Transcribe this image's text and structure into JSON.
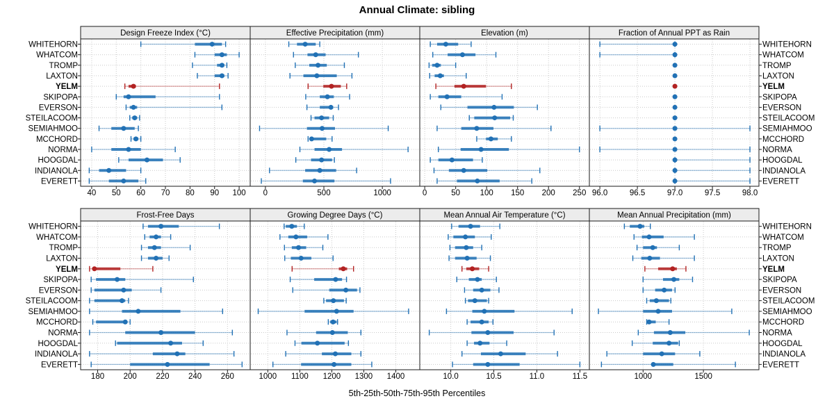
{
  "title": "Annual Climate: sibling",
  "caption": "5th-25th-50th-75th-95th Percentiles",
  "colors": {
    "series_normal": "#2171b5",
    "series_highlight": "#b22222",
    "strip_background": "#ececec",
    "panel_border": "#1a1a1a",
    "gridline": "#c9c9c9",
    "text": "#000000"
  },
  "stations": [
    "WHITEHORN",
    "WHATCOM",
    "TROMP",
    "LAXTON",
    "YELM",
    "SKIPOPA",
    "EVERSON",
    "STEILACOOM",
    "SEMIAHMOO",
    "MCCHORD",
    "NORMA",
    "HOOGDAL",
    "INDIANOLA",
    "EVERETT"
  ],
  "highlight_station": "YELM",
  "chart_data": {
    "type": "dot-whisker percentile plot (lattice 2x4 grid)",
    "percentile_labels": [
      "5th",
      "25th",
      "50th",
      "75th",
      "95th"
    ],
    "grid": [
      2,
      4
    ],
    "panels": [
      {
        "title": "Design Freeze Index (°C)",
        "grid_row": 0,
        "grid_col": 0,
        "ticks": [
          40,
          50,
          60,
          70,
          80,
          90,
          100
        ],
        "tick_labels": [
          "40",
          "50",
          "60",
          "70",
          "80",
          "90",
          "100"
        ],
        "range": [
          35.5,
          104.5
        ],
        "values": {
          "WHITEHORN": [
            60,
            82,
            89,
            93,
            94.5
          ],
          "WHATCOM": [
            82,
            90,
            93,
            95,
            100
          ],
          "TROMP": [
            81,
            91,
            93,
            94,
            95
          ],
          "LAXTON": [
            83,
            90,
            93,
            94,
            95.5
          ],
          "YELM": [
            53.5,
            55,
            57,
            58,
            92
          ],
          "SKIPOPA": [
            50,
            53,
            55,
            66,
            92
          ],
          "EVERSON": [
            54,
            55.5,
            57,
            58.5,
            93
          ],
          "STEILACOOM": [
            55.5,
            56.5,
            57.5,
            58.5,
            59.5
          ],
          "SEMIAHMOO": [
            43,
            48,
            53,
            57.5,
            59
          ],
          "MCCHORD": [
            56,
            57,
            58,
            59,
            60
          ],
          "NORMA": [
            40,
            48,
            55,
            60,
            74
          ],
          "HOOGDAL": [
            51,
            55,
            62.5,
            69,
            76
          ],
          "INDIANOLA": [
            39,
            43,
            47,
            54,
            60
          ],
          "EVERETT": [
            39,
            47,
            53,
            59,
            62
          ]
        }
      },
      {
        "title": "Effective Precipitation (mm)",
        "grid_row": 0,
        "grid_col": 1,
        "ticks": [
          0,
          500,
          1000
        ],
        "tick_labels": [
          "0",
          "500",
          "1000"
        ],
        "range": [
          -130,
          1320
        ],
        "values": {
          "WHITEHORN": [
            200,
            270,
            340,
            430,
            465
          ],
          "WHATCOM": [
            240,
            360,
            430,
            515,
            795
          ],
          "TROMP": [
            255,
            375,
            450,
            525,
            675
          ],
          "LAXTON": [
            210,
            325,
            440,
            610,
            740
          ],
          "YELM": [
            365,
            495,
            565,
            645,
            695
          ],
          "SKIPOPA": [
            345,
            465,
            530,
            585,
            720
          ],
          "EVERSON": [
            355,
            465,
            560,
            580,
            625
          ],
          "STEILACOOM": [
            390,
            420,
            480,
            545,
            580
          ],
          "SEMIAHMOO": [
            -50,
            355,
            485,
            595,
            1050
          ],
          "MCCHORD": [
            365,
            380,
            395,
            520,
            570
          ],
          "NORMA": [
            295,
            420,
            545,
            655,
            1220
          ],
          "HOOGDAL": [
            260,
            390,
            480,
            570,
            590
          ],
          "INDIANOLA": [
            35,
            340,
            465,
            605,
            780
          ],
          "EVERETT": [
            -35,
            320,
            420,
            590,
            1070
          ]
        }
      },
      {
        "title": "Elevation (m)",
        "grid_row": 0,
        "grid_col": 2,
        "ticks": [
          0,
          50,
          100,
          150,
          200,
          250
        ],
        "tick_labels": [
          "0",
          "50",
          "100",
          "150",
          "200",
          "250"
        ],
        "range": [
          -8,
          266
        ],
        "values": {
          "WHITEHORN": [
            9,
            20,
            34,
            54,
            75
          ],
          "WHATCOM": [
            13,
            37,
            61,
            82,
            115
          ],
          "TROMP": [
            7,
            12,
            20,
            26,
            50
          ],
          "LAXTON": [
            8,
            16,
            25,
            31,
            67
          ],
          "YELM": [
            18,
            48,
            63,
            99,
            140
          ],
          "SKIPOPA": [
            9,
            22,
            36,
            59,
            125
          ],
          "EVERSON": [
            26,
            69,
            112,
            144,
            182
          ],
          "STEILACOOM": [
            72,
            80,
            113,
            138,
            143
          ],
          "SEMIAHMOO": [
            20,
            59,
            84,
            111,
            204
          ],
          "MCCHORD": [
            84,
            99,
            107,
            118,
            140
          ],
          "NORMA": [
            22,
            58,
            91,
            136,
            250
          ],
          "HOOGDAL": [
            9,
            22,
            44,
            78,
            93
          ],
          "INDIANOLA": [
            15,
            39,
            63,
            101,
            186
          ],
          "EVERETT": [
            20,
            52,
            85,
            121,
            173
          ]
        }
      },
      {
        "title": "Fraction of Annual PPT as Rain",
        "grid_row": 0,
        "grid_col": 3,
        "ticks": [
          96.0,
          96.5,
          97.0,
          97.5,
          98.0
        ],
        "tick_labels": [
          "96.0",
          "96.5",
          "97.0",
          "97.5",
          "98.0"
        ],
        "range": [
          95.86,
          98.12
        ],
        "values": {
          "WHITEHORN": [
            96.0,
            97.0,
            97.0,
            97.0,
            97.0
          ],
          "WHATCOM": [
            96.0,
            97.0,
            97.0,
            97.0,
            97.0
          ],
          "TROMP": [
            97.0,
            97.0,
            97.0,
            97.0,
            97.0
          ],
          "LAXTON": [
            97.0,
            97.0,
            97.0,
            97.0,
            97.0
          ],
          "YELM": [
            97.0,
            97.0,
            97.0,
            97.0,
            97.0
          ],
          "SKIPOPA": [
            97.0,
            97.0,
            97.0,
            97.0,
            97.0
          ],
          "EVERSON": [
            97.0,
            97.0,
            97.0,
            97.0,
            97.0
          ],
          "STEILACOOM": [
            97.0,
            97.0,
            97.0,
            97.0,
            97.0
          ],
          "SEMIAHMOO": [
            96.0,
            97.0,
            97.0,
            97.0,
            98.0
          ],
          "MCCHORD": [
            97.0,
            97.0,
            97.0,
            97.0,
            97.0
          ],
          "NORMA": [
            96.0,
            97.0,
            97.0,
            97.0,
            98.0
          ],
          "HOOGDAL": [
            97.0,
            97.0,
            97.0,
            97.0,
            98.0
          ],
          "INDIANOLA": [
            97.0,
            97.0,
            97.0,
            97.0,
            98.0
          ],
          "EVERETT": [
            97.0,
            97.0,
            97.0,
            97.0,
            98.0
          ]
        }
      },
      {
        "title": "Frost-Free Days",
        "grid_row": 1,
        "grid_col": 0,
        "ticks": [
          180,
          200,
          220,
          240,
          260
        ],
        "tick_labels": [
          "180",
          "200",
          "220",
          "240",
          "260"
        ],
        "range": [
          169.5,
          274
        ],
        "values": {
          "WHITEHORN": [
            208,
            211,
            219,
            230,
            255
          ],
          "WHATCOM": [
            209,
            212,
            216,
            219,
            225
          ],
          "TROMP": [
            207,
            211,
            215,
            219,
            237
          ],
          "LAXTON": [
            207,
            211,
            216,
            220,
            224
          ],
          "YELM": [
            175,
            177,
            178,
            194,
            214
          ],
          "SKIPOPA": [
            176,
            179,
            192,
            197,
            239
          ],
          "EVERSON": [
            176,
            178,
            196,
            201,
            219
          ],
          "STEILACOOM": [
            175,
            178,
            195,
            197,
            199
          ],
          "SEMIAHMOO": [
            175,
            195,
            205,
            231,
            257
          ],
          "MCCHORD": [
            177,
            179,
            197,
            198,
            200
          ],
          "NORMA": [
            175,
            197,
            219,
            240,
            263
          ],
          "HOOGDAL": [
            191,
            192,
            225,
            232,
            245
          ],
          "INDIANOLA": [
            175,
            214,
            229,
            234,
            264
          ],
          "EVERETT": [
            176,
            200,
            223,
            249,
            269
          ]
        }
      },
      {
        "title": "Growing Degree Days (°C)",
        "grid_row": 1,
        "grid_col": 1,
        "ticks": [
          1000,
          1100,
          1200,
          1300,
          1400
        ],
        "tick_labels": [
          "1000",
          "1100",
          "1200",
          "1300",
          "1400"
        ],
        "range": [
          945,
          1475
        ],
        "values": {
          "WHITEHORN": [
            1051,
            1056,
            1075,
            1091,
            1114
          ],
          "WHATCOM": [
            1038,
            1064,
            1088,
            1123,
            1188
          ],
          "TROMP": [
            1052,
            1075,
            1096,
            1120,
            1172
          ],
          "LAXTON": [
            1053,
            1072,
            1104,
            1136,
            1204
          ],
          "YELM": [
            1076,
            1222,
            1236,
            1248,
            1268
          ],
          "SKIPOPA": [
            1070,
            1145,
            1212,
            1232,
            1246
          ],
          "EVERSON": [
            1078,
            1192,
            1244,
            1279,
            1288
          ],
          "STEILACOOM": [
            1175,
            1182,
            1205,
            1238,
            1245
          ],
          "SEMIAHMOO": [
            970,
            1115,
            1215,
            1268,
            1440
          ],
          "MCCHORD": [
            1189,
            1195,
            1204,
            1215,
            1218
          ],
          "NORMA": [
            1060,
            1151,
            1202,
            1250,
            1291
          ],
          "HOOGDAL": [
            1085,
            1105,
            1155,
            1240,
            1252
          ],
          "INDIANOLA": [
            1056,
            1169,
            1211,
            1261,
            1291
          ],
          "EVERETT": [
            1016,
            1104,
            1207,
            1261,
            1325
          ]
        }
      },
      {
        "title": "Mean Annual Air Temperature (°C)",
        "grid_row": 1,
        "grid_col": 2,
        "ticks": [
          10.0,
          10.5,
          11.0,
          11.5
        ],
        "tick_labels": [
          "10.0",
          "10.5",
          "11.0",
          "11.5"
        ],
        "range": [
          9.64,
          11.61
        ],
        "values": {
          "WHITEHORN": [
            10.01,
            10.09,
            10.23,
            10.34,
            10.57
          ],
          "WHATCOM": [
            9.97,
            10.03,
            10.17,
            10.28,
            10.47
          ],
          "TROMP": [
            9.99,
            10.05,
            10.18,
            10.26,
            10.36
          ],
          "LAXTON": [
            9.98,
            10.05,
            10.19,
            10.3,
            10.46
          ],
          "YELM": [
            10.13,
            10.18,
            10.25,
            10.33,
            10.44
          ],
          "SKIPOPA": [
            10.07,
            10.21,
            10.31,
            10.36,
            10.53
          ],
          "EVERSON": [
            10.16,
            10.26,
            10.36,
            10.46,
            10.56
          ],
          "STEILACOOM": [
            10.17,
            10.2,
            10.28,
            10.42,
            10.44
          ],
          "SEMIAHMOO": [
            9.95,
            10.25,
            10.39,
            10.74,
            11.41
          ],
          "MCCHORD": [
            10.19,
            10.23,
            10.36,
            10.44,
            10.49
          ],
          "NORMA": [
            9.75,
            10.24,
            10.43,
            10.73,
            11.2
          ],
          "HOOGDAL": [
            10.19,
            10.27,
            10.34,
            10.45,
            10.65
          ],
          "INDIANOLA": [
            10.13,
            10.35,
            10.58,
            10.87,
            11.24
          ],
          "EVERETT": [
            10.02,
            10.26,
            10.43,
            10.8,
            11.5
          ]
        }
      },
      {
        "title": "Mean Annual Precipitation (mm)",
        "grid_row": 1,
        "grid_col": 3,
        "ticks": [
          1000,
          1500
        ],
        "tick_labels": [
          "1000",
          "1500"
        ],
        "range": [
          555,
          1960
        ],
        "values": {
          "WHITEHORN": [
            845,
            890,
            975,
            1010,
            1060
          ],
          "WHATCOM": [
            925,
            990,
            1050,
            1170,
            1425
          ],
          "TROMP": [
            950,
            1000,
            1080,
            1115,
            1300
          ],
          "LAXTON": [
            915,
            985,
            1055,
            1140,
            1425
          ],
          "YELM": [
            1015,
            1125,
            1245,
            1280,
            1355
          ],
          "SKIPOPA": [
            1000,
            1165,
            1255,
            1300,
            1410
          ],
          "EVERSON": [
            1000,
            1100,
            1175,
            1240,
            1265
          ],
          "STEILACOOM": [
            1030,
            1055,
            1110,
            1215,
            1230
          ],
          "SEMIAHMOO": [
            630,
            1000,
            1125,
            1240,
            1735
          ],
          "MCCHORD": [
            1030,
            1040,
            1050,
            1105,
            1215
          ],
          "NORMA": [
            960,
            1090,
            1225,
            1350,
            1880
          ],
          "HOOGDAL": [
            910,
            1080,
            1215,
            1290,
            1300
          ],
          "INDIANOLA": [
            700,
            1000,
            1155,
            1265,
            1470
          ],
          "EVERETT": [
            655,
            1070,
            1085,
            1250,
            1765
          ]
        }
      }
    ]
  }
}
